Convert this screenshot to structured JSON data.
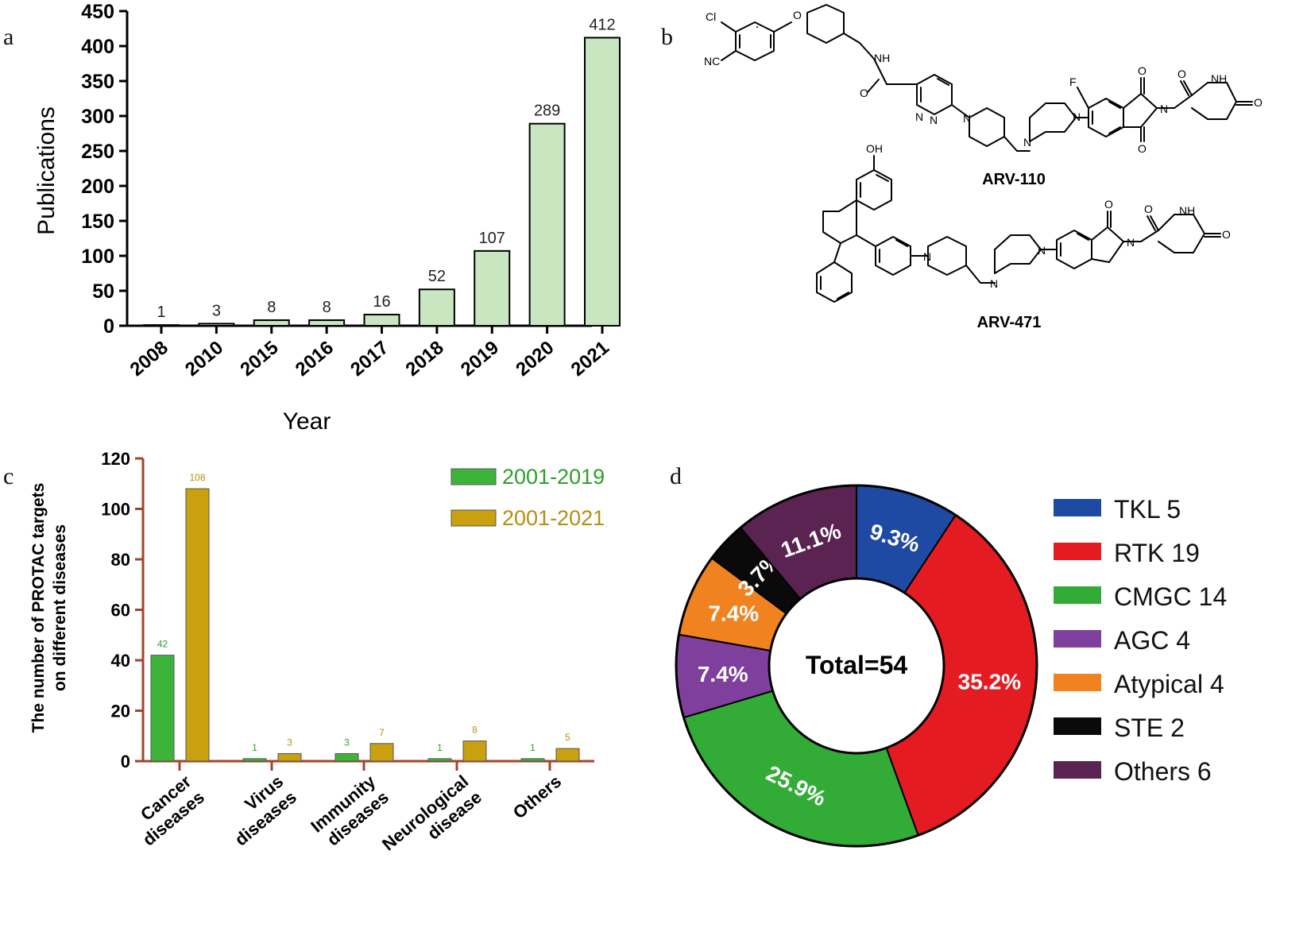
{
  "panel_labels": {
    "a": "a",
    "b": "b",
    "c": "c",
    "d": "d"
  },
  "chart_data": [
    {
      "id": "a",
      "type": "bar",
      "title": "",
      "xlabel": "Year",
      "ylabel": "Publications",
      "categories": [
        "2008",
        "2010",
        "2015",
        "2016",
        "2017",
        "2018",
        "2019",
        "2020",
        "2021"
      ],
      "values": [
        1,
        3,
        8,
        8,
        16,
        52,
        107,
        289,
        412
      ],
      "data_labels": [
        "1",
        "3",
        "8",
        "8",
        "16",
        "52",
        "107",
        "289",
        "412"
      ],
      "ylim": [
        0,
        450
      ],
      "yticks": [
        0,
        50,
        100,
        150,
        200,
        250,
        300,
        350,
        400,
        450
      ],
      "bar_color": "#c8e6c0",
      "edge_color": "#000000",
      "grid": false
    },
    {
      "id": "c",
      "type": "bar",
      "xlabel": "",
      "ylabel_lines": [
        "The number of PROTAC targets",
        "on different diseases"
      ],
      "categories": [
        [
          "Cancer",
          "diseases"
        ],
        [
          "Virus",
          "diseases"
        ],
        [
          "Immunity",
          "diseases"
        ],
        [
          "Neurological",
          "disease"
        ],
        [
          "Others"
        ]
      ],
      "series": [
        {
          "name": "2001-2019",
          "values": [
            42,
            1,
            3,
            1,
            1
          ],
          "labels": [
            "42",
            "1",
            "3",
            "1",
            "1"
          ],
          "color": "#3db33a",
          "text_color": "#2ea02a"
        },
        {
          "name": "2001-2021",
          "values": [
            108,
            3,
            7,
            8,
            5
          ],
          "labels": [
            "108",
            "3",
            "7",
            "8",
            "5"
          ],
          "color": "#c9a010",
          "text_color": "#b58f10"
        }
      ],
      "ylim": [
        0,
        120
      ],
      "yticks": [
        0,
        20,
        40,
        60,
        80,
        100,
        120
      ],
      "axis_color": "#a0462a",
      "legend": "top-right",
      "grid": false
    },
    {
      "id": "d",
      "type": "pie",
      "donut": true,
      "center_label": "Total=54",
      "slices": [
        {
          "name": "TKL",
          "count": "5",
          "value": 5,
          "pct": "9.3%",
          "color": "#1f4aa3"
        },
        {
          "name": "RTK",
          "count": "19",
          "value": 19,
          "pct": "35.2%",
          "color": "#e41c22"
        },
        {
          "name": "CMGC",
          "count": "14",
          "value": 14,
          "pct": "25.9%",
          "color": "#32ac37"
        },
        {
          "name": "AGC",
          "count": "4",
          "value": 4,
          "pct": "7.4%",
          "color": "#7e3f9d"
        },
        {
          "name": "Atypical",
          "count": "4",
          "value": 4,
          "pct": "7.4%",
          "color": "#f0831f"
        },
        {
          "name": "STE",
          "count": "2",
          "value": 2,
          "pct": "3.7%",
          "color": "#0a0a0a"
        },
        {
          "name": "Others",
          "count": "6",
          "value": 6,
          "pct": "11.1%",
          "color": "#5a2351"
        }
      ],
      "legend_items": [
        "TKL  5",
        "RTK  19",
        "CMGC 14",
        "AGC  4",
        "Atypical 4",
        "STE 2",
        "Others 6"
      ],
      "legend": "right"
    }
  ],
  "structures": {
    "atoms_top": {
      "cl": "Cl",
      "nc": "NC",
      "o": "O",
      "nh1": "NH",
      "o_amide": "O",
      "n1": "N",
      "n2": "N",
      "n_pip": "N",
      "n_pz1": "N",
      "n_pz2": "N",
      "f": "F",
      "o_top": "O",
      "n_imide": "N",
      "o_bot": "O",
      "o_g1": "O",
      "nh_g": "NH",
      "o_g2": "O"
    },
    "atoms_bottom": {
      "oh": "OH",
      "n_pip": "N",
      "n_pz1": "N",
      "n_pz2": "N",
      "o_iso": "O",
      "n_iso": "N",
      "o_g1": "O",
      "nh_g": "NH",
      "o_g2": "O"
    },
    "names": [
      "ARV-110",
      "ARV-471"
    ]
  }
}
